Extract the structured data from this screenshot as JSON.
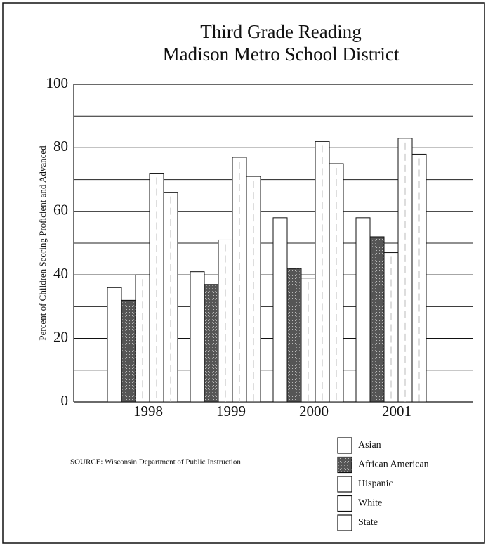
{
  "chart_data": {
    "type": "bar",
    "title": "Third Grade Reading",
    "subtitle": "Madison Metro School District",
    "y_label": "Percent of Children Scoring Proficient and Advanced",
    "source": "SOURCE: Wisconsin Department of Public Instruction",
    "categories": [
      "1998",
      "1999",
      "2000",
      "2001"
    ],
    "series": [
      {
        "name": "Asian",
        "color": "#ffffff",
        "values": [
          36,
          41,
          58,
          58
        ]
      },
      {
        "name": "African American",
        "color": "#555555",
        "values": [
          32,
          37,
          42,
          52
        ]
      },
      {
        "name": "Hispanic",
        "color": "#ffffff",
        "values": [
          40,
          51,
          39,
          47
        ]
      },
      {
        "name": "White",
        "color": "#ffffff",
        "values": [
          72,
          77,
          82,
          83
        ]
      },
      {
        "name": "State",
        "color": "#ffffff",
        "values": [
          66,
          71,
          75,
          78
        ]
      }
    ],
    "ylim": [
      0,
      100
    ],
    "yticks": [
      0,
      20,
      40,
      60,
      80,
      100
    ],
    "yminor": [
      10,
      30,
      50,
      70,
      90
    ],
    "grid": true
  }
}
